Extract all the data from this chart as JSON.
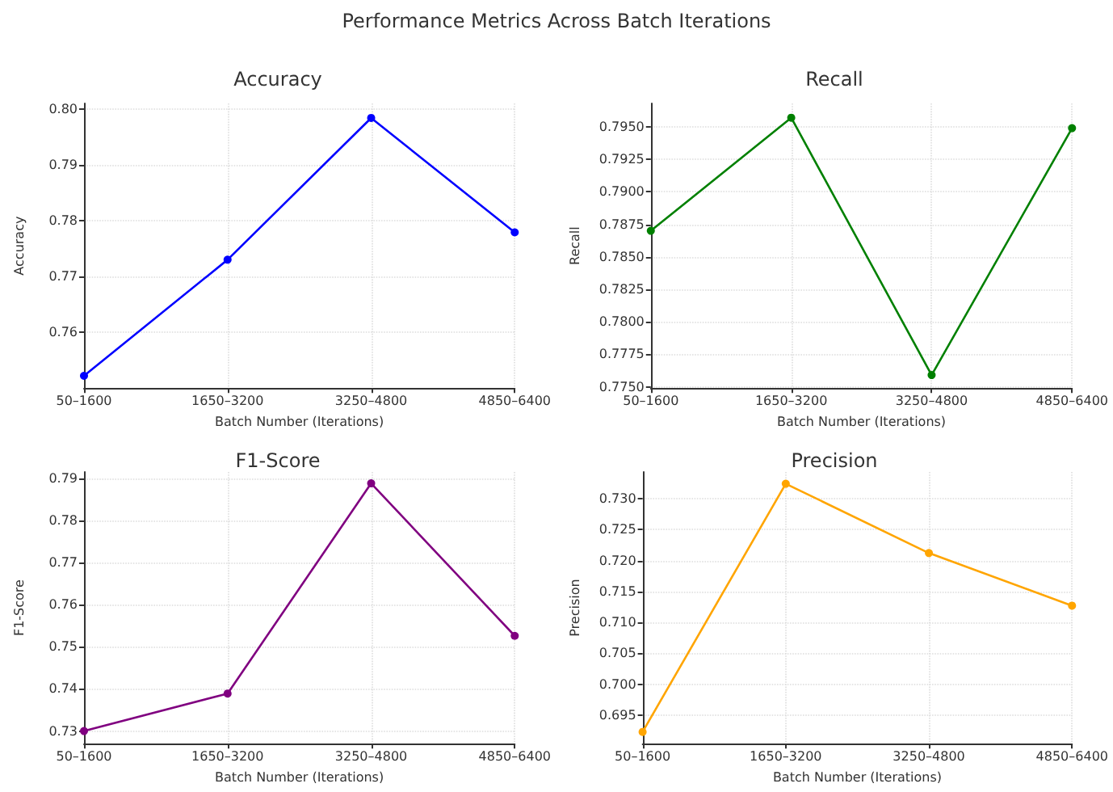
{
  "chart_data": [
    {
      "type": "line",
      "title": "Accuracy",
      "xlabel": "Batch Number (Iterations)",
      "ylabel": "Accuracy",
      "annotations": [
        "Performance Metrics Across Batch Iterations"
      ],
      "categories": [
        "50–1600",
        "1650–3200",
        "3250–4800",
        "4850–6400"
      ],
      "series": [
        {
          "color": "#0000ff",
          "values": [
            0.7522,
            0.773,
            0.7984,
            0.7779
          ]
        }
      ],
      "ylim": [
        0.75,
        0.801
      ],
      "yticks": [
        0.76,
        0.77,
        0.78,
        0.79,
        {
          "value": 0.8,
          "label": "0.80"
        }
      ],
      "grid": true,
      "marker": "circle",
      "line_style": "solid"
    },
    {
      "type": "line",
      "title": "Recall",
      "xlabel": "Batch Number (Iterations)",
      "ylabel": "Recall",
      "categories": [
        "50–1600",
        "1650–3200",
        "3250–4800",
        "4850–6400"
      ],
      "series": [
        {
          "color": "#008000",
          "values": [
            0.787,
            0.7957,
            0.7759,
            0.7949
          ]
        }
      ],
      "ylim": [
        0.7749,
        0.7968
      ],
      "yticks": [
        {
          "value": 0.775,
          "label": "0.7750"
        },
        0.7775,
        {
          "value": 0.78,
          "label": "0.7800"
        },
        0.7825,
        {
          "value": 0.785,
          "label": "0.7850"
        },
        0.7875,
        {
          "value": 0.79,
          "label": "0.7900"
        },
        0.7925,
        {
          "value": 0.795,
          "label": "0.7950"
        }
      ],
      "grid": true,
      "marker": "circle",
      "line_style": "solid"
    },
    {
      "type": "line",
      "title": "F1-Score",
      "xlabel": "Batch Number (Iterations)",
      "ylabel": "F1-Score",
      "categories": [
        "50–1600",
        "1650–3200",
        "3250–4800",
        "4850–6400"
      ],
      "series": [
        {
          "color": "#800080",
          "values": [
            0.73,
            0.7389,
            0.7888,
            0.7526
          ]
        }
      ],
      "ylim": [
        0.727,
        0.7915
      ],
      "yticks": [
        0.73,
        0.74,
        0.75,
        0.76,
        0.77,
        0.78,
        0.79
      ],
      "grid": true,
      "marker": "circle",
      "line_style": "solid"
    },
    {
      "type": "line",
      "title": "Precision",
      "xlabel": "Batch Number (Iterations)",
      "ylabel": "Precision",
      "categories": [
        "50–1600",
        "1650–3200",
        "3250–4800",
        "4850–6400"
      ],
      "series": [
        {
          "color": "#ffa500",
          "values": [
            0.6923,
            0.7324,
            0.7212,
            0.7127
          ]
        }
      ],
      "ylim": [
        0.6904,
        0.7343
      ],
      "yticks": [
        0.695,
        {
          "value": 0.7,
          "label": "0.700"
        },
        0.705,
        {
          "value": 0.71,
          "label": "0.710"
        },
        0.715,
        {
          "value": 0.72,
          "label": "0.720"
        },
        0.725,
        {
          "value": 0.73,
          "label": "0.730"
        }
      ],
      "grid": true,
      "marker": "circle",
      "line_style": "solid"
    }
  ]
}
